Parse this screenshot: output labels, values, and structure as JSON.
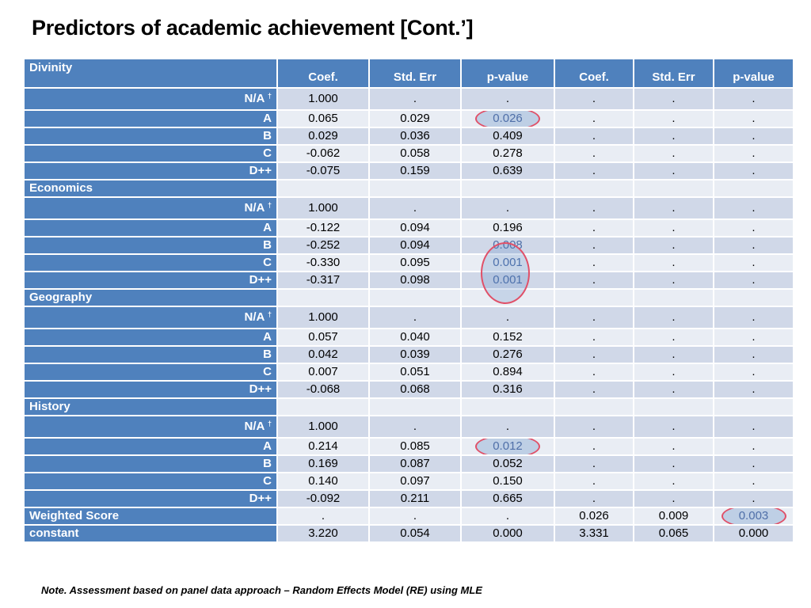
{
  "title": "Predictors of academic achievement [Cont.’]",
  "note": "Note. Assessment based on panel data approach – Random Effects Model (RE) using MLE",
  "header": {
    "corner": "Divinity",
    "columns": [
      "Coef.",
      "Std. Err",
      "p-value",
      "Coef.",
      "Std. Err",
      "p-value"
    ]
  },
  "rows": [
    {
      "label": "N/A",
      "dagger": "†",
      "v": [
        "1.000",
        ".",
        ".",
        ".",
        ".",
        "."
      ]
    },
    {
      "label": "A",
      "v": [
        "0.065",
        "0.029",
        "0.026",
        ".",
        ".",
        "."
      ]
    },
    {
      "label": "B",
      "v": [
        "0.029",
        "0.036",
        "0.409",
        ".",
        ".",
        "."
      ]
    },
    {
      "label": "C",
      "v": [
        "-0.062",
        "0.058",
        "0.278",
        ".",
        ".",
        "."
      ]
    },
    {
      "label": "D++",
      "v": [
        "-0.075",
        "0.159",
        "0.639",
        ".",
        ".",
        "."
      ]
    },
    {
      "label": "Economics",
      "group": true
    },
    {
      "label": "N/A",
      "dagger": "†",
      "v": [
        "1.000",
        ".",
        ".",
        ".",
        ".",
        "."
      ]
    },
    {
      "label": "A",
      "v": [
        "-0.122",
        "0.094",
        "0.196",
        ".",
        ".",
        "."
      ]
    },
    {
      "label": "B",
      "v": [
        "-0.252",
        "0.094",
        "0.008",
        ".",
        ".",
        "."
      ]
    },
    {
      "label": "C",
      "v": [
        "-0.330",
        "0.095",
        "0.001",
        ".",
        ".",
        "."
      ]
    },
    {
      "label": "D++",
      "v": [
        "-0.317",
        "0.098",
        "0.001",
        ".",
        ".",
        "."
      ]
    },
    {
      "label": "Geography",
      "group": true
    },
    {
      "label": "N/A",
      "dagger": "†",
      "v": [
        "1.000",
        ".",
        ".",
        ".",
        ".",
        "."
      ]
    },
    {
      "label": "A",
      "v": [
        "0.057",
        "0.040",
        "0.152",
        ".",
        ".",
        "."
      ]
    },
    {
      "label": "B",
      "v": [
        "0.042",
        "0.039",
        "0.276",
        ".",
        ".",
        "."
      ]
    },
    {
      "label": "C",
      "v": [
        "0.007",
        "0.051",
        "0.894",
        ".",
        ".",
        "."
      ]
    },
    {
      "label": "D++",
      "v": [
        "-0.068",
        "0.068",
        "0.316",
        ".",
        ".",
        "."
      ]
    },
    {
      "label": "History",
      "group": true
    },
    {
      "label": "N/A",
      "dagger": "†",
      "v": [
        "1.000",
        ".",
        ".",
        ".",
        ".",
        "."
      ]
    },
    {
      "label": "A",
      "v": [
        "0.214",
        "0.085",
        "0.012",
        ".",
        ".",
        "."
      ]
    },
    {
      "label": "B",
      "v": [
        "0.169",
        "0.087",
        "0.052",
        ".",
        ".",
        "."
      ]
    },
    {
      "label": "C",
      "v": [
        "0.140",
        "0.097",
        "0.150",
        ".",
        ".",
        "."
      ]
    },
    {
      "label": "D++",
      "v": [
        "-0.092",
        "0.211",
        "0.665",
        ".",
        ".",
        "."
      ]
    },
    {
      "label": "Weighted Score",
      "group": true,
      "v": [
        ".",
        ".",
        ".",
        "0.026",
        "0.009",
        "0.003"
      ]
    },
    {
      "label": "constant",
      "group": true,
      "v": [
        "3.220",
        "0.054",
        "0.000",
        "3.331",
        "0.065",
        "0.000"
      ]
    }
  ],
  "colors": {
    "header_bg": "#4f81bd",
    "row_dark": "#d0d8e8",
    "row_light": "#e9edf4",
    "highlight_ring": "#e05068"
  }
}
